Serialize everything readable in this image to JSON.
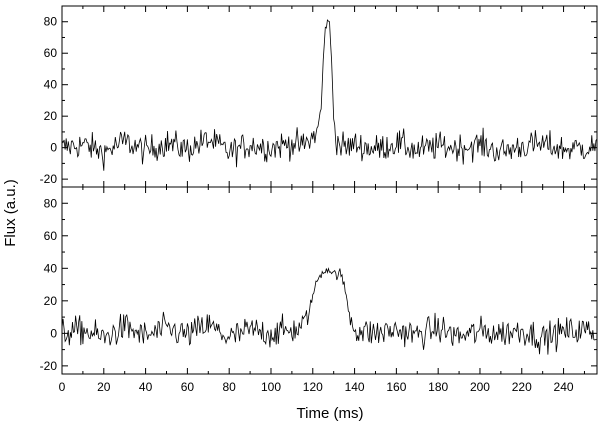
{
  "chart_data": {
    "type": "line",
    "xlabel": "Time (ms)",
    "ylabel": "Flux (a.u.)",
    "xlim": [
      0,
      256
    ],
    "x_ticks": [
      "0",
      "20",
      "40",
      "60",
      "80",
      "100",
      "120",
      "140",
      "160",
      "180",
      "200",
      "220",
      "240"
    ],
    "panels": [
      {
        "ylim": [
          -25,
          90
        ],
        "y_ticks": [
          "-20",
          "0",
          "20",
          "40",
          "60",
          "80"
        ],
        "series": [
          {
            "x": [
              0,
              10,
              20,
              30,
              40,
              50,
              60,
              70,
              80,
              90,
              100,
              110,
              115,
              119,
              122,
              124,
              125,
              126,
              127,
              128,
              129,
              130,
              131,
              132,
              134,
              136,
              140,
              150,
              160,
              170,
              180,
              190,
              200,
              210,
              220,
              230,
              240,
              250,
              256
            ],
            "y": [
              0,
              2,
              -3,
              4,
              -2,
              3,
              -1,
              5,
              -3,
              2,
              0,
              3,
              1,
              5,
              10,
              25,
              55,
              75,
              82,
              78,
              55,
              20,
              8,
              3,
              1,
              0,
              2,
              -1,
              3,
              -2,
              1,
              0,
              2,
              -3,
              1,
              2,
              -1,
              0,
              1
            ]
          }
        ]
      },
      {
        "ylim": [
          -25,
          90
        ],
        "y_ticks": [
          "-20",
          "0",
          "20",
          "40",
          "60",
          "80"
        ],
        "series": [
          {
            "x": [
              0,
              10,
              20,
              30,
              40,
              50,
              60,
              70,
              80,
              90,
              100,
              110,
              114,
              117,
              119,
              121,
              123,
              125,
              127,
              129,
              131,
              133,
              135,
              137,
              139,
              141,
              144,
              150,
              160,
              170,
              180,
              190,
              200,
              210,
              220,
              230,
              240,
              250,
              256
            ],
            "y": [
              0,
              2,
              -3,
              4,
              -2,
              3,
              -1,
              5,
              -3,
              2,
              0,
              2,
              3,
              8,
              18,
              28,
              35,
              38,
              40,
              38,
              36,
              37,
              30,
              15,
              6,
              2,
              1,
              0,
              2,
              -1,
              3,
              -2,
              1,
              0,
              2,
              -3,
              1,
              2,
              0
            ]
          }
        ]
      }
    ]
  }
}
